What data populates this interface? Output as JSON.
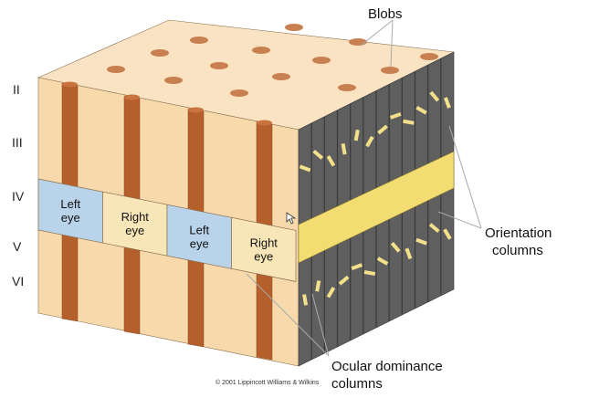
{
  "layers": [
    "II",
    "III",
    "IV",
    "V",
    "VI"
  ],
  "callouts": {
    "blobs": "Blobs",
    "orientation_line1": "Orientation",
    "orientation_line2": "columns",
    "ocular_line1": "Ocular dominance",
    "ocular_line2": "columns"
  },
  "patches": [
    {
      "line1": "Left",
      "line2": "eye",
      "eye": "left"
    },
    {
      "line1": "Right",
      "line2": "eye",
      "eye": "right"
    },
    {
      "line1": "Left",
      "line2": "eye",
      "eye": "left"
    },
    {
      "line1": "Right",
      "line2": "eye",
      "eye": "right"
    }
  ],
  "copyright": "© 2001 Lippincott Williams & Wilkins",
  "colors": {
    "cortex": "#f7d9ac",
    "cortex_top": "#fae3c2",
    "blob": "#c98050",
    "column_stripe": "#b55f2b",
    "left_eye": "#b9d3ea",
    "right_eye": "#f8e6b8",
    "layer_iv_side": "#f3dd72",
    "orientation_column": "#5f5f5f",
    "orientation_bar": "#f3e08a"
  }
}
